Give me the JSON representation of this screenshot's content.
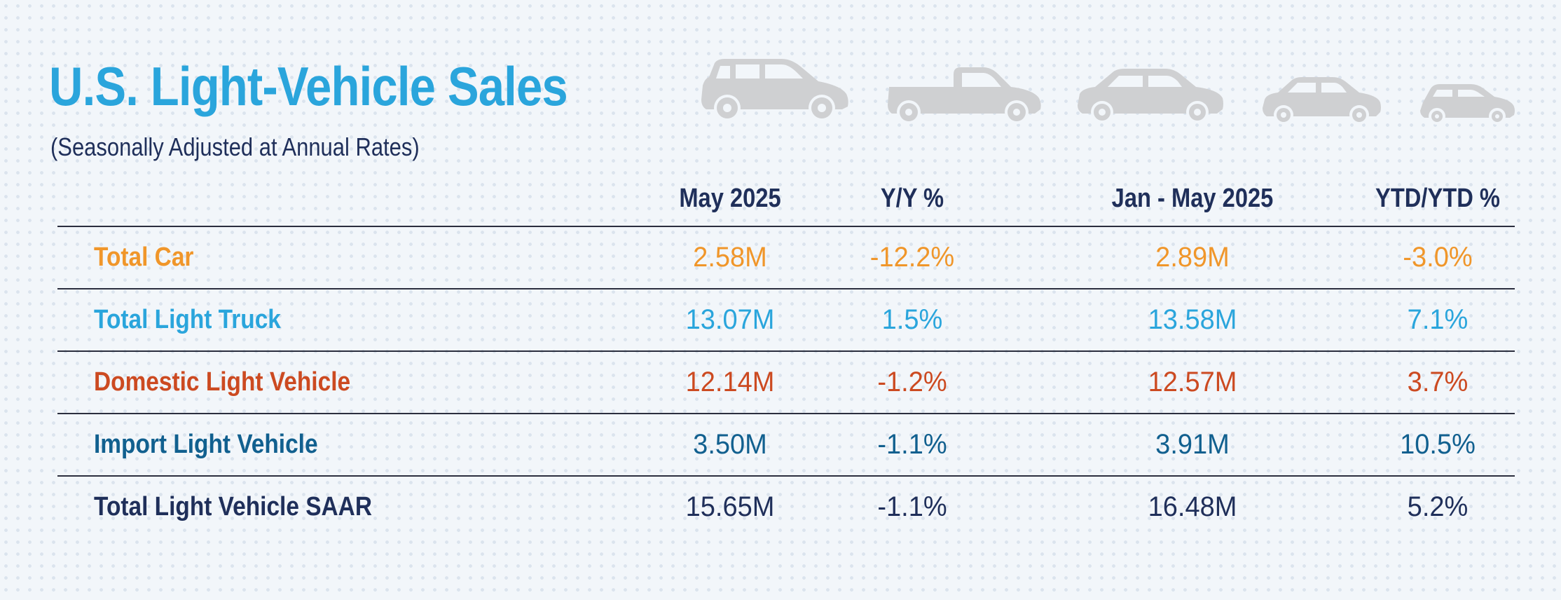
{
  "title": "U.S. Light-Vehicle Sales",
  "subtitle": "(Seasonally Adjusted at Annual Rates)",
  "colors": {
    "title": "#2aa5dc",
    "subtitle": "#1f2f5a",
    "car_icons": "#cfd0d2",
    "total_car": "#f0962a",
    "total_light_truck": "#2aa5dc",
    "domestic_light_vehicle": "#cc4a21",
    "import_light_vehicle": "#11608f",
    "total_light_vehicle_saar": "#1f2f5a"
  },
  "icons": [
    "suv-icon",
    "pickup-truck-icon",
    "sedan-icon",
    "compact-car-icon",
    "hatchback-icon"
  ],
  "chart_data": {
    "type": "table",
    "title": "U.S. Light-Vehicle Sales",
    "subtitle": "(Seasonally Adjusted at Annual Rates)",
    "columns": [
      "May 2025",
      "Y/Y %",
      "Jan - May 2025",
      "YTD/YTD %"
    ],
    "rows": [
      {
        "label": "Total Car",
        "values": [
          "2.58M",
          "-12.2%",
          "2.89M",
          "-3.0%"
        ]
      },
      {
        "label": "Total Light Truck",
        "values": [
          "13.07M",
          "1.5%",
          "13.58M",
          "7.1%"
        ]
      },
      {
        "label": "Domestic Light Vehicle",
        "values": [
          "12.14M",
          "-1.2%",
          "12.57M",
          "3.7%"
        ]
      },
      {
        "label": "Import Light Vehicle",
        "values": [
          "3.50M",
          "-1.1%",
          "3.91M",
          "10.5%"
        ]
      },
      {
        "label": "Total Light Vehicle SAAR",
        "values": [
          "15.65M",
          "-1.1%",
          "16.48M",
          "5.2%"
        ]
      }
    ]
  }
}
